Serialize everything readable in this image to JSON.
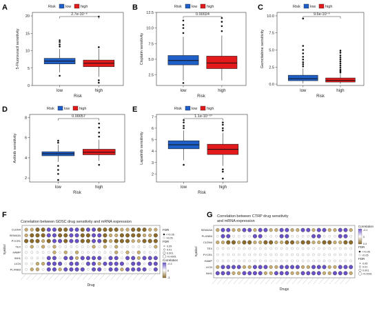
{
  "colors": {
    "low": "#1f5fc8",
    "high": "#e31a1c",
    "dot_purple": "#6a51c8",
    "dot_brown": "#8c6a2a",
    "dot_tan": "#c9ad6e",
    "dot_white": "#ffffff"
  },
  "chart_data": [
    {
      "panel": "A",
      "type": "box",
      "legend_title": "Risk",
      "legend": [
        "low",
        "high"
      ],
      "xlabel": "Risk",
      "ylabel": "5-Fluorouracil sensitivity",
      "categories": [
        "low",
        "high"
      ],
      "ylim": [
        0,
        21
      ],
      "yticks": [
        0,
        5,
        10,
        15,
        20
      ],
      "pvalue": "2.7e-10⁻⁶",
      "series": [
        {
          "name": "low",
          "q1": 6.2,
          "median": 7.0,
          "q3": 7.8,
          "whisker_low": 3.8,
          "whisker_high": 10.5,
          "outliers": [
            11.2,
            11.8,
            12.5,
            13.0,
            2.8
          ]
        },
        {
          "name": "high",
          "q1": 5.4,
          "median": 6.4,
          "q3": 7.3,
          "whisker_low": 2.5,
          "whisker_high": 10.5,
          "outliers": [
            11.0,
            19.8,
            1.5,
            0.8
          ]
        }
      ]
    },
    {
      "panel": "B",
      "type": "box",
      "legend_title": "Risk",
      "legend": [
        "low",
        "high"
      ],
      "xlabel": "Risk",
      "ylabel": "Cisplatin sensitivity",
      "categories": [
        "low",
        "high"
      ],
      "ylim": [
        0.8,
        12.5
      ],
      "yticks": [
        2.5,
        5.0,
        7.5,
        10.0,
        12.5
      ],
      "pvalue": "0.00024",
      "series": [
        {
          "name": "low",
          "q1": 4.1,
          "median": 4.8,
          "q3": 5.6,
          "whisker_low": 1.6,
          "whisker_high": 8.6,
          "outliers": [
            9.2,
            10.0,
            10.5,
            11.2,
            1.2
          ]
        },
        {
          "name": "high",
          "q1": 3.5,
          "median": 4.4,
          "q3": 5.5,
          "whisker_low": 1.6,
          "whisker_high": 8.8,
          "outliers": [
            9.5,
            10.3,
            11.0,
            11.6
          ]
        }
      ]
    },
    {
      "panel": "C",
      "type": "box",
      "legend_title": "Risk",
      "legend": [
        "low",
        "high"
      ],
      "xlabel": "Risk",
      "ylabel": "Gemcitabine sensitivity",
      "categories": [
        "low",
        "high"
      ],
      "ylim": [
        -0.2,
        10.5
      ],
      "yticks": [
        0.0,
        2.5,
        5.0,
        7.5,
        10.0
      ],
      "pvalue": "9.6e-10⁻⁶",
      "series": [
        {
          "name": "low",
          "q1": 0.5,
          "median": 0.8,
          "q3": 1.3,
          "whisker_low": 0.1,
          "whisker_high": 2.3,
          "outliers": [
            2.6,
            2.9,
            3.2,
            3.6,
            4.0,
            4.5,
            5.0,
            5.6,
            9.6
          ]
        },
        {
          "name": "high",
          "q1": 0.3,
          "median": 0.55,
          "q3": 0.9,
          "whisker_low": 0.05,
          "whisker_high": 1.5,
          "outliers": [
            1.7,
            1.9,
            2.1,
            2.4,
            2.7,
            3.0,
            3.3,
            3.6,
            3.9,
            4.2,
            4.6,
            4.9
          ]
        }
      ]
    },
    {
      "panel": "D",
      "type": "box",
      "legend_title": "Risk",
      "legend": [
        "low",
        "high"
      ],
      "xlabel": "Risk",
      "ylabel": "Axitinib sensitivity",
      "categories": [
        "low",
        "high"
      ],
      "ylim": [
        1.6,
        8.3
      ],
      "yticks": [
        2,
        4,
        6,
        8
      ],
      "pvalue": "0.00057",
      "series": [
        {
          "name": "low",
          "q1": 4.2,
          "median": 4.4,
          "q3": 4.6,
          "whisker_low": 3.6,
          "whisker_high": 5.3,
          "outliers": [
            5.5,
            5.7,
            3.2,
            2.8,
            2.4,
            1.8
          ]
        },
        {
          "name": "high",
          "q1": 4.3,
          "median": 4.55,
          "q3": 4.85,
          "whisker_low": 3.7,
          "whisker_high": 5.8,
          "outliers": [
            6.1,
            6.5,
            7.0,
            7.4,
            3.3
          ]
        }
      ]
    },
    {
      "panel": "E",
      "type": "box",
      "legend_title": "Risk",
      "legend": [
        "low",
        "high"
      ],
      "xlabel": "Risk",
      "ylabel": "Lapatinib sensitivity",
      "categories": [
        "low",
        "high"
      ],
      "ylim": [
        1.3,
        7.2
      ],
      "yticks": [
        2,
        3,
        4,
        5,
        6,
        7
      ],
      "pvalue": "1.1e-10⁻¹⁰",
      "series": [
        {
          "name": "low",
          "q1": 4.2,
          "median": 4.55,
          "q3": 4.9,
          "whisker_low": 3.2,
          "whisker_high": 5.8,
          "outliers": [
            6.0,
            6.2,
            6.5,
            6.7,
            2.8
          ]
        },
        {
          "name": "high",
          "q1": 3.7,
          "median": 4.15,
          "q3": 4.6,
          "whisker_low": 2.7,
          "whisker_high": 5.6,
          "outliers": [
            5.8,
            6.0,
            6.3,
            6.5,
            2.4,
            2.2,
            1.6
          ]
        }
      ]
    },
    {
      "panel": "F",
      "type": "dot-heatmap",
      "title": "Correlation between GDSC drug sensitivity and mRNA expression",
      "ylabel": "Symbol",
      "xlabel": "Drug",
      "rows": [
        "CLDN4",
        "SEMA3A",
        "PYCR1",
        "TEX",
        "HAMP",
        "INH1",
        "LICN",
        "PLXNB3"
      ],
      "n_cols": 24,
      "legend": {
        "fdr_title": "FDR",
        "fdr_items": [
          "<=0.05",
          ">0.05"
        ],
        "fdr2_title": "FDR",
        "fdr2_items": [
          "0.05",
          "0.01",
          "0.001",
          "<0.0001"
        ],
        "corr_title": "Correlation",
        "corr_ticks": [
          "-0.3",
          "0",
          "-3"
        ]
      }
    },
    {
      "panel": "G",
      "type": "dot-heatmap",
      "title": "Correlation between CTRP drug sensitivity\nand mRNA expression",
      "ylabel": "Symbol",
      "xlabel": "Drugs",
      "rows": [
        "SEMA3A",
        "PLXNB3",
        "CLDN4",
        "TEX",
        "PYCR1",
        "HAMP",
        "LICN",
        "INH1"
      ],
      "n_cols": 26,
      "legend": {
        "corr_title": "Correlation",
        "corr_ticks": [
          "-0.1",
          "0",
          "0.3"
        ],
        "fdr_title": "FDR",
        "fdr_items": [
          "<=0.05",
          ">0.05"
        ],
        "fdr2_title": "FDR",
        "fdr2_items": [
          "0.05",
          "0.01",
          "0.001",
          "<0.0001"
        ]
      }
    }
  ]
}
